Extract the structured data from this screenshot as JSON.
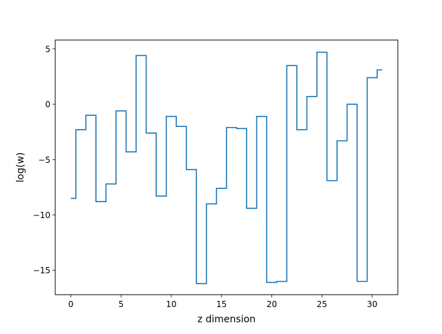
{
  "chart_data": {
    "type": "line",
    "drawstyle": "steps-mid",
    "title": "",
    "xlabel": "z dimension",
    "ylabel": "log(w)",
    "xlim": [
      -1.55,
      32.55
    ],
    "ylim": [
      -17.2,
      5.8
    ],
    "xticks": [
      0,
      5,
      10,
      15,
      20,
      25,
      30
    ],
    "xtick_labels": [
      "0",
      "5",
      "10",
      "15",
      "20",
      "25",
      "30"
    ],
    "yticks": [
      5,
      0,
      -5,
      -10,
      -15
    ],
    "ytick_labels": [
      "5",
      "0",
      "−5",
      "−10",
      "−15"
    ],
    "grid": false,
    "line_color": "#1f77b4",
    "series": [
      {
        "x": [
          0,
          1,
          2,
          3,
          4,
          5,
          6,
          7,
          8,
          9,
          10,
          11,
          12,
          13,
          14,
          15,
          16,
          17,
          18,
          19,
          20,
          21,
          22,
          23,
          24,
          25,
          26,
          27,
          28,
          29,
          30,
          31
        ],
        "values": [
          -8.5,
          -2.3,
          -1.0,
          -8.8,
          -7.2,
          -0.6,
          -4.3,
          4.4,
          -2.6,
          -8.3,
          -1.1,
          -2.0,
          -5.9,
          -16.2,
          -9.0,
          -7.6,
          -2.1,
          -2.2,
          -9.4,
          -1.1,
          -16.1,
          -16.0,
          3.5,
          -2.3,
          0.7,
          4.7,
          -6.9,
          -3.3,
          0.0,
          -16.0,
          2.4,
          3.1
        ]
      }
    ]
  }
}
